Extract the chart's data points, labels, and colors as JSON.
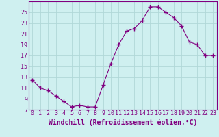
{
  "x": [
    0,
    1,
    2,
    3,
    4,
    5,
    6,
    7,
    8,
    9,
    10,
    11,
    12,
    13,
    14,
    15,
    16,
    17,
    18,
    19,
    20,
    21,
    22,
    23
  ],
  "y": [
    12.5,
    11.0,
    10.5,
    9.5,
    8.5,
    7.5,
    7.8,
    7.5,
    7.5,
    11.5,
    15.5,
    19.0,
    21.5,
    22.0,
    23.5,
    26.0,
    26.0,
    25.0,
    24.0,
    22.5,
    19.5,
    19.0,
    17.0,
    17.0
  ],
  "line_color": "#800080",
  "marker": "D",
  "marker_size": 2,
  "bg_color": "#cff0f0",
  "grid_color": "#b0d8d8",
  "xlabel": "Windchill (Refroidissement éolien,°C)",
  "xlabel_fontsize": 7,
  "ylim": [
    7,
    27
  ],
  "xlim": [
    -0.5,
    23.5
  ],
  "yticks": [
    7,
    9,
    11,
    13,
    15,
    17,
    19,
    21,
    23,
    25
  ],
  "xticks": [
    0,
    1,
    2,
    3,
    4,
    5,
    6,
    7,
    8,
    9,
    10,
    11,
    12,
    13,
    14,
    15,
    16,
    17,
    18,
    19,
    20,
    21,
    22,
    23
  ],
  "tick_fontsize": 6,
  "tick_color": "#800080",
  "label_color": "#800080"
}
